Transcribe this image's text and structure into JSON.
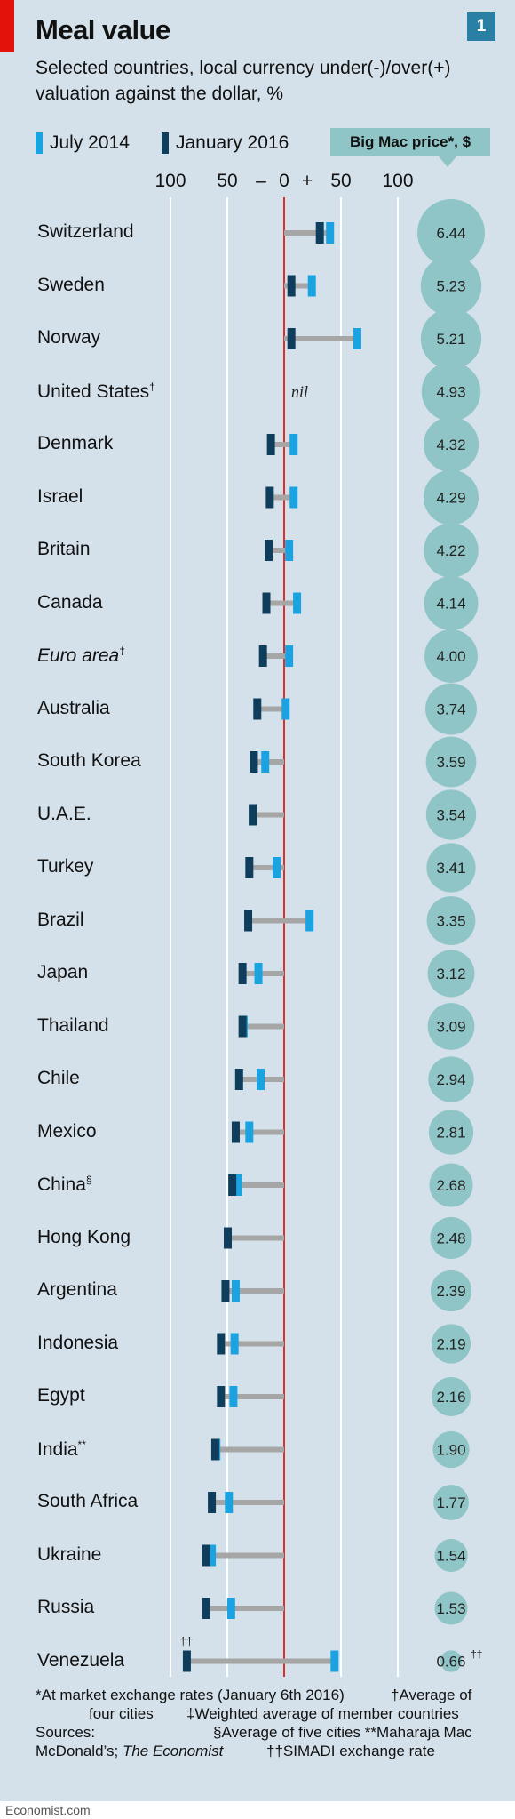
{
  "header": {
    "title": "Meal value",
    "subtitle": "Selected countries, local currency under(-)/over(+) valuation against the dollar, %",
    "badge": "1"
  },
  "legend": {
    "july": "July 2014",
    "jan": "January 2016",
    "big_mac_label": "Big Mac price*, $"
  },
  "axis_ticks": [
    "100",
    "50",
    "–",
    "0",
    "+",
    "50",
    "100"
  ],
  "colors": {
    "july": "#1aa3e0",
    "jan": "#0e3e5c",
    "connector": "#a6a6a6",
    "zero_line": "#d9302a",
    "gridline": "#ffffff",
    "bubble": "#8fc5c6"
  },
  "chart_data": {
    "type": "dot-range",
    "title": "Meal value",
    "unit": "%",
    "xlim": [
      -100,
      100
    ],
    "series": [
      {
        "name": "July 2014",
        "key": "jul2014"
      },
      {
        "name": "January 2016",
        "key": "jan2016"
      }
    ],
    "rows": [
      {
        "country": "Switzerland",
        "sup": "",
        "italic": false,
        "jul2014": 40,
        "jan2016": 31,
        "price": "6.44"
      },
      {
        "country": "Sweden",
        "sup": "",
        "italic": false,
        "jul2014": 24,
        "jan2016": 6,
        "price": "5.23"
      },
      {
        "country": "Norway",
        "sup": "",
        "italic": false,
        "jul2014": 64,
        "jan2016": 6,
        "price": "5.21"
      },
      {
        "country": "United States",
        "sup": "†",
        "italic": false,
        "nil": "nil",
        "price": "4.93"
      },
      {
        "country": "Denmark",
        "sup": "",
        "italic": false,
        "jul2014": 8,
        "jan2016": -12,
        "price": "4.32"
      },
      {
        "country": "Israel",
        "sup": "",
        "italic": false,
        "jul2014": 8,
        "jan2016": -13,
        "price": "4.29"
      },
      {
        "country": "Britain",
        "sup": "",
        "italic": false,
        "jul2014": 4,
        "jan2016": -14,
        "price": "4.22"
      },
      {
        "country": "Canada",
        "sup": "",
        "italic": false,
        "jul2014": 11,
        "jan2016": -16,
        "price": "4.14"
      },
      {
        "country": "Euro area",
        "sup": "‡",
        "italic": true,
        "jul2014": 4,
        "jan2016": -19,
        "price": "4.00"
      },
      {
        "country": "Australia",
        "sup": "",
        "italic": false,
        "jul2014": 1,
        "jan2016": -24,
        "price": "3.74"
      },
      {
        "country": "South Korea",
        "sup": "",
        "italic": false,
        "jul2014": -17,
        "jan2016": -27,
        "price": "3.59"
      },
      {
        "country": "U.A.E.",
        "sup": "",
        "italic": false,
        "jul2014": -28,
        "jan2016": -28,
        "price": "3.54"
      },
      {
        "country": "Turkey",
        "sup": "",
        "italic": false,
        "jul2014": -7,
        "jan2016": -31,
        "price": "3.41"
      },
      {
        "country": "Brazil",
        "sup": "",
        "italic": false,
        "jul2014": 22,
        "jan2016": -32,
        "price": "3.35"
      },
      {
        "country": "Japan",
        "sup": "",
        "italic": false,
        "jul2014": -23,
        "jan2016": -37,
        "price": "3.12"
      },
      {
        "country": "Thailand",
        "sup": "",
        "italic": false,
        "jul2014": -36,
        "jan2016": -37,
        "price": "3.09"
      },
      {
        "country": "Chile",
        "sup": "",
        "italic": false,
        "jul2014": -21,
        "jan2016": -40,
        "price": "2.94"
      },
      {
        "country": "Mexico",
        "sup": "",
        "italic": false,
        "jul2014": -31,
        "jan2016": -43,
        "price": "2.81"
      },
      {
        "country": "China",
        "sup": "§",
        "italic": false,
        "jul2014": -41,
        "jan2016": -46,
        "price": "2.68"
      },
      {
        "country": "Hong Kong",
        "sup": "",
        "italic": false,
        "jul2014": -50,
        "jan2016": -50,
        "price": "2.48"
      },
      {
        "country": "Argentina",
        "sup": "",
        "italic": false,
        "jul2014": -43,
        "jan2016": -52,
        "price": "2.39"
      },
      {
        "country": "Indonesia",
        "sup": "",
        "italic": false,
        "jul2014": -44,
        "jan2016": -56,
        "price": "2.19"
      },
      {
        "country": "Egypt",
        "sup": "",
        "italic": false,
        "jul2014": -45,
        "jan2016": -56,
        "price": "2.16"
      },
      {
        "country": "India",
        "sup": "**",
        "italic": false,
        "jul2014": -60,
        "jan2016": -61,
        "price": "1.90"
      },
      {
        "country": "South Africa",
        "sup": "",
        "italic": false,
        "jul2014": -49,
        "jan2016": -64,
        "price": "1.77"
      },
      {
        "country": "Ukraine",
        "sup": "",
        "italic": false,
        "jul2014": -64,
        "jan2016": -69,
        "price": "1.54"
      },
      {
        "country": "Russia",
        "sup": "",
        "italic": false,
        "jul2014": -47,
        "jan2016": -69,
        "price": "1.53"
      },
      {
        "country": "Venezuela",
        "sup": "",
        "italic": false,
        "jul2014": 44,
        "jan2016": -86,
        "price": "0.66",
        "price_sup": "††",
        "jan_sup": "††"
      }
    ]
  },
  "notes": {
    "line1_left": "*At market exchange rates (January 6th 2016)",
    "line1_right": "†Average of",
    "line2": "four cities",
    "line2_right": "‡Weighted average of member countries",
    "line3_left": "Sources:",
    "line3_right": "§Average of five cities  **Maharaja Mac",
    "line4_left": "McDonald’s; ",
    "line4_italic": "The Economist",
    "line4_right": "††SIMADI exchange rate"
  },
  "footer": "Economist.com"
}
